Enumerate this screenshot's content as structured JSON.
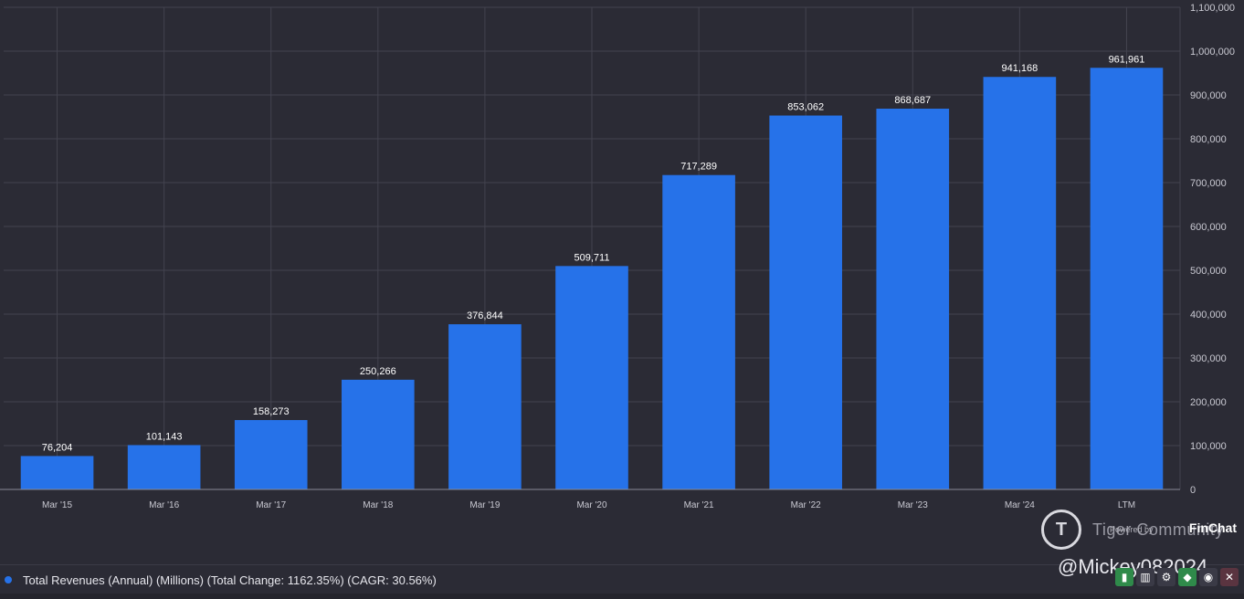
{
  "chart_data": {
    "type": "bar",
    "title": "",
    "categories": [
      "Mar '15",
      "Mar '16",
      "Mar '17",
      "Mar '18",
      "Mar '19",
      "Mar '20",
      "Mar '21",
      "Mar '22",
      "Mar '23",
      "Mar '24",
      "LTM"
    ],
    "values": [
      76204,
      101143,
      158273,
      250266,
      376844,
      509711,
      717289,
      853062,
      868687,
      941168,
      961961
    ],
    "value_labels": [
      "76,204",
      "101,143",
      "158,273",
      "250,266",
      "376,844",
      "509,711",
      "717,289",
      "853,062",
      "868,687",
      "941,168",
      "961,961"
    ],
    "ylim": [
      0,
      1100000
    ],
    "y_ticks": [
      0,
      100000,
      200000,
      300000,
      400000,
      500000,
      600000,
      700000,
      800000,
      900000,
      1000000,
      1100000
    ],
    "y_tick_labels": [
      "0",
      "100,000",
      "200,000",
      "300,000",
      "400,000",
      "500,000",
      "600,000",
      "700,000",
      "800,000",
      "900,000",
      "1,000,000",
      "1,100,000"
    ],
    "y_axis_side": "right",
    "grid": true,
    "bar_color": "#2672e9",
    "xlabel": "",
    "ylabel": ""
  },
  "legend": {
    "text": "Total Revenues (Annual) (Millions) (Total Change: 1162.35%) (CAGR: 30.56%)",
    "color": "#2672e9"
  },
  "branding": {
    "tiger_text": "Tiger Community",
    "powered_by": "Powered by",
    "finchat": "FinChat"
  },
  "watermark": "@Mickey082024"
}
